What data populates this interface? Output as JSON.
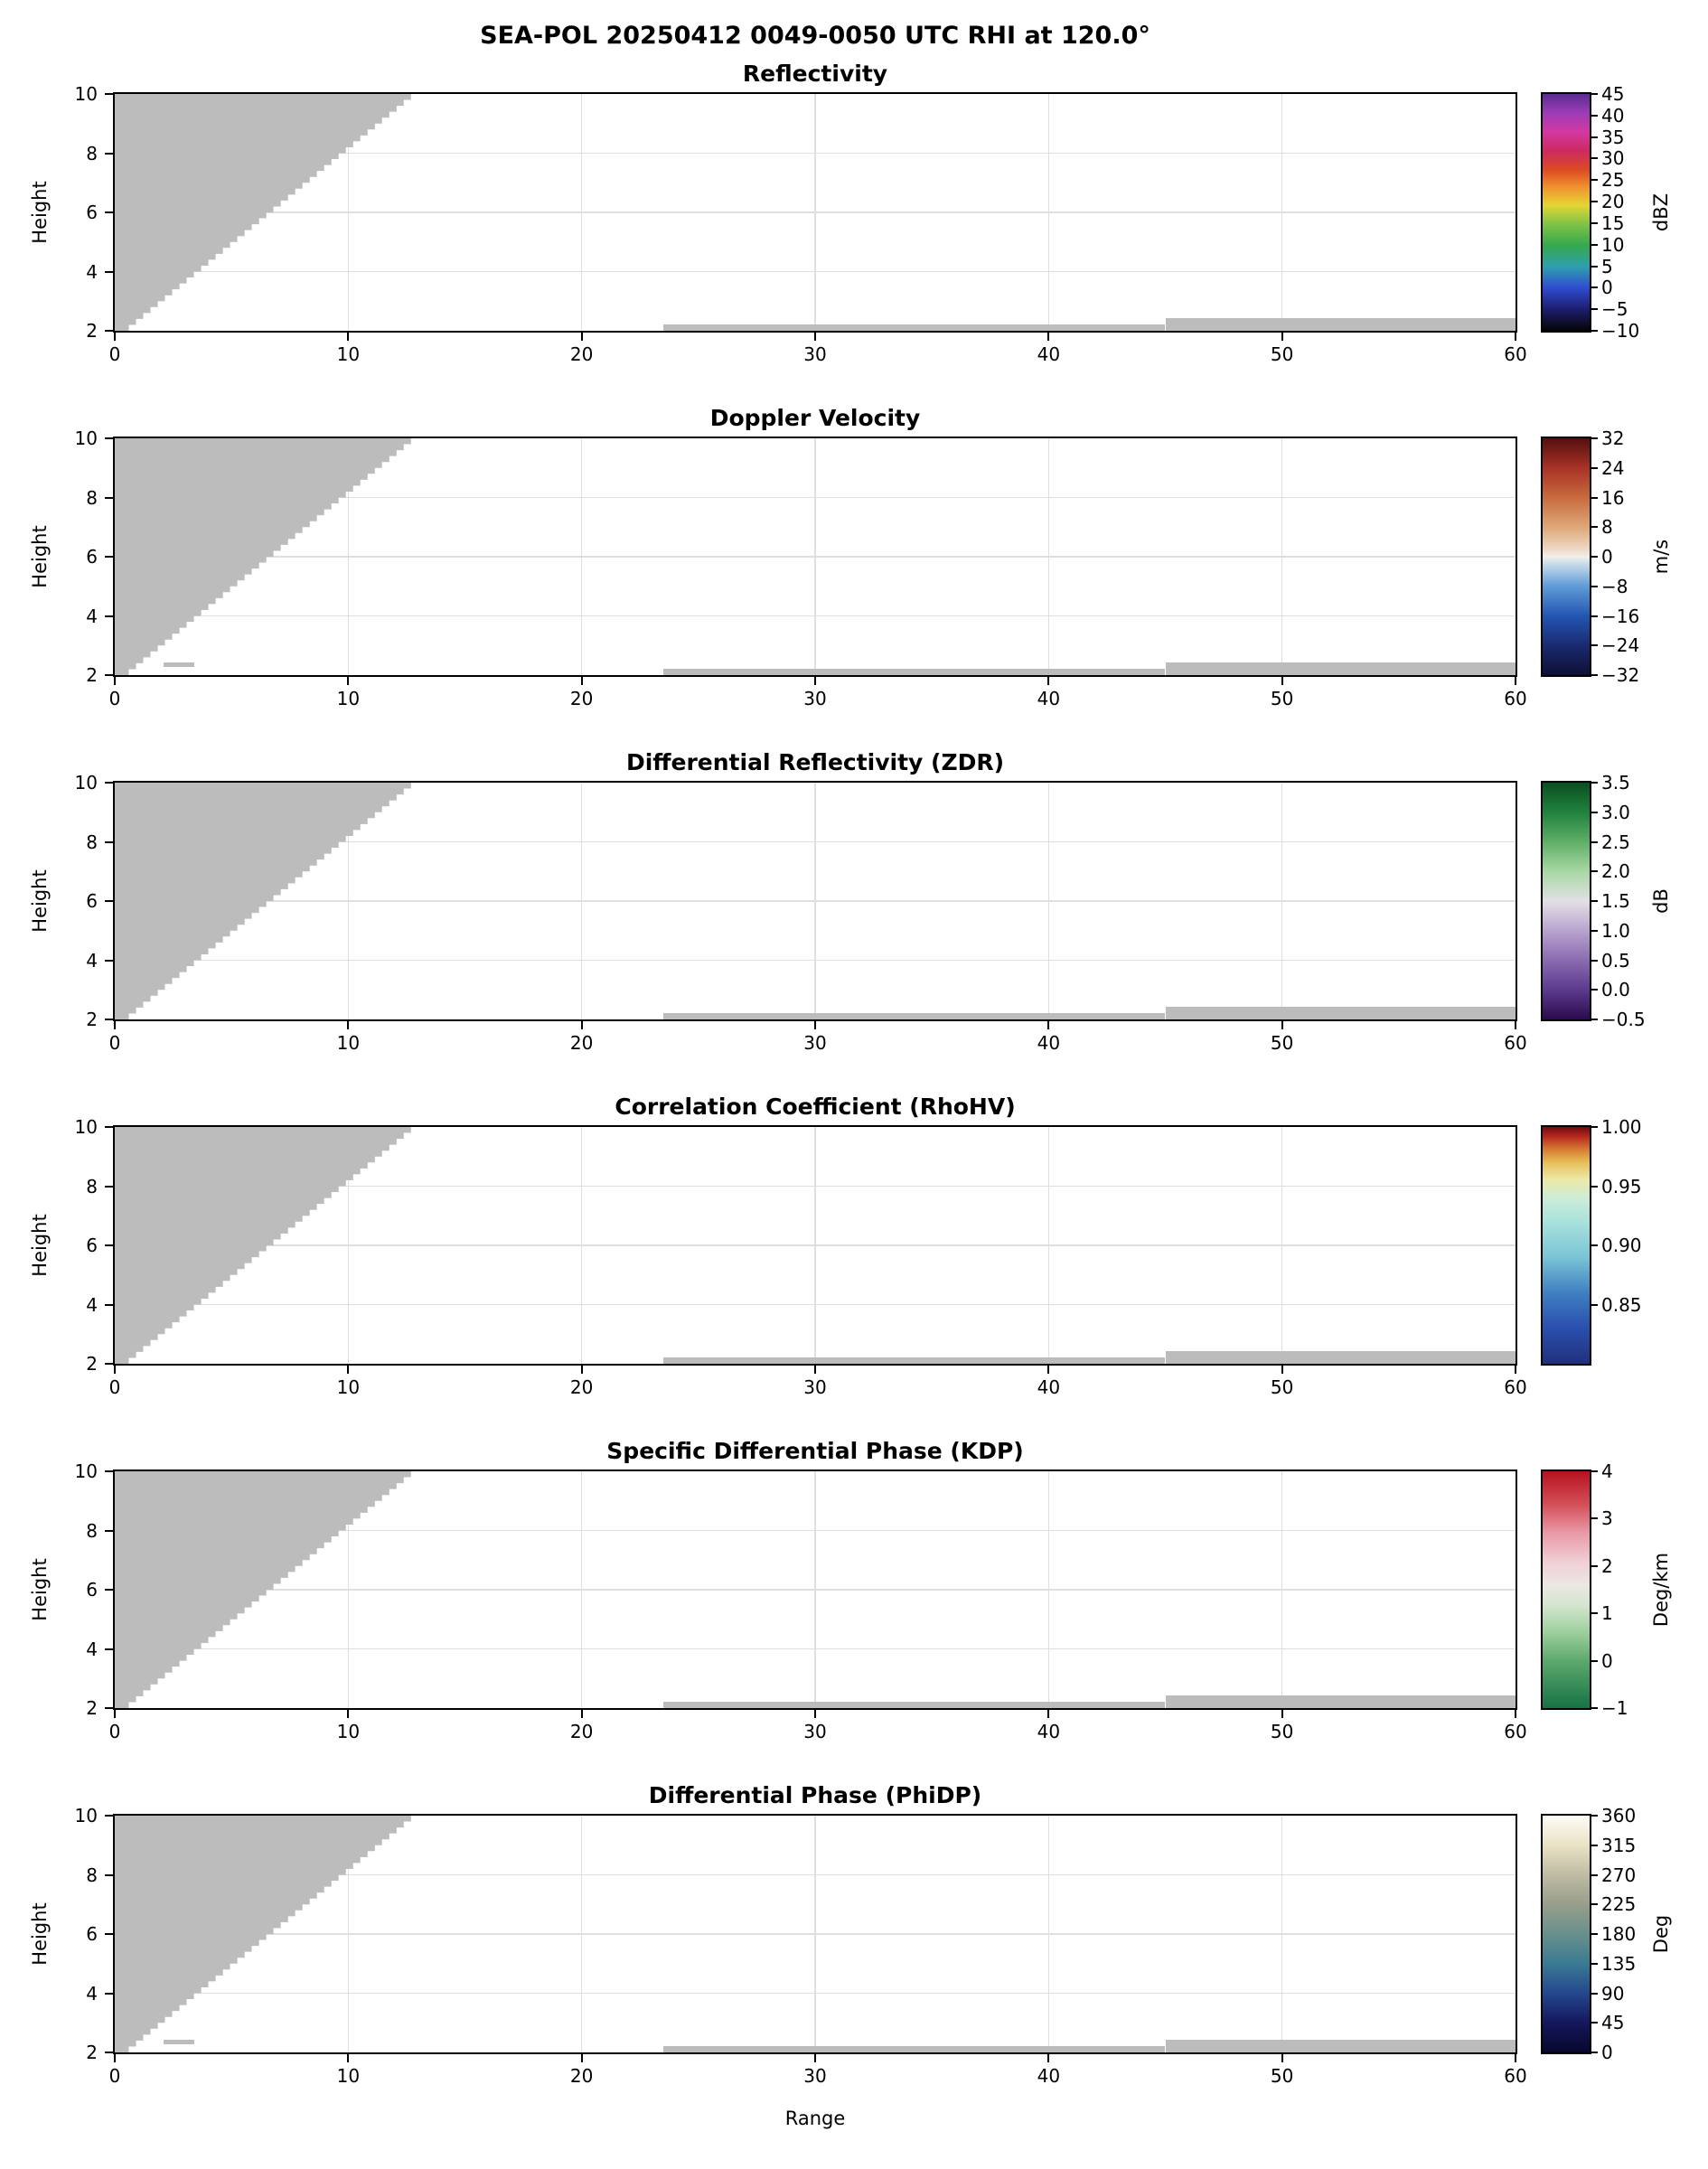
{
  "chart_data": {
    "type": "heatmap",
    "title": "SEA-POL 20250412 0049-0050 UTC RHI at 120.0°",
    "xlabel": "Range",
    "ylabel": "Height",
    "xlim": [
      0,
      60
    ],
    "ylim": [
      2,
      10
    ],
    "xticks": [
      0,
      10,
      20,
      30,
      40,
      50,
      60
    ],
    "xtick_labels": [
      "0",
      "10",
      "20",
      "30",
      "40",
      "50",
      "60"
    ],
    "yticks": [
      2,
      4,
      6,
      8,
      10
    ],
    "ytick_labels": [
      "2",
      "4",
      "6",
      "8",
      "10"
    ],
    "grid": true,
    "legend_position": "right-colorbar-per-panel",
    "visible_data_note": "No weather echoes are rendered; every panel shows only gray no-data mask regions: an upper-left wedge (range 0 to ~13, from height 2 up to 10, stepped diagonal edge) above the RHI scan's maximum elevation, plus thin near-surface gray strips at ranges 23.5-45 (height 2-2.22) and 45-60 (height 2-2.42).",
    "style": {
      "background": "#ffffff",
      "mask_color": "#bcbcbc",
      "grid_color": "#dfdfdf",
      "axis_color": "#000000"
    },
    "mask_regions": {
      "wedge": {
        "x_bottom": 0.6,
        "x_top": 13.0,
        "y_bottom": 2.0,
        "y_top": 10.0
      },
      "strips": [
        {
          "x0": 23.5,
          "x1": 45.0,
          "y0": 2.0,
          "y1": 2.22
        },
        {
          "x0": 45.0,
          "x1": 60.0,
          "y0": 2.0,
          "y1": 2.42
        }
      ],
      "speckles": [
        {
          "x0": 2.1,
          "x1": 3.4,
          "y0": 2.28,
          "y1": 2.42,
          "panels": [
            1,
            5
          ]
        }
      ]
    },
    "panels": [
      {
        "id": "reflectivity",
        "title": "Reflectivity",
        "unit": "dBZ",
        "vmin": -10,
        "vmax": 45,
        "ctick_values": [
          45,
          40,
          35,
          30,
          25,
          20,
          15,
          10,
          5,
          0,
          -5,
          -10
        ],
        "ctick_labels": [
          "45",
          "40",
          "35",
          "30",
          "25",
          "20",
          "15",
          "10",
          "5",
          "0",
          "−5",
          "−10"
        ],
        "gradient": [
          [
            0,
            "#050505"
          ],
          [
            0.09,
            "#1c1c6e"
          ],
          [
            0.18,
            "#2f4bd0"
          ],
          [
            0.27,
            "#2e9fae"
          ],
          [
            0.36,
            "#35a84e"
          ],
          [
            0.45,
            "#7fc346"
          ],
          [
            0.53,
            "#e4d534"
          ],
          [
            0.6,
            "#f19830"
          ],
          [
            0.68,
            "#dc4a22"
          ],
          [
            0.76,
            "#cc2a60"
          ],
          [
            0.84,
            "#d438a2"
          ],
          [
            0.92,
            "#9d3cb8"
          ],
          [
            1,
            "#5a2c90"
          ]
        ]
      },
      {
        "id": "velocity",
        "title": "Doppler Velocity",
        "unit": "m/s",
        "vmin": -32,
        "vmax": 32,
        "ctick_values": [
          32,
          24,
          16,
          8,
          0,
          -8,
          -16,
          -24,
          -32
        ],
        "ctick_labels": [
          "32",
          "24",
          "16",
          "8",
          "0",
          "−8",
          "−16",
          "−24",
          "−32"
        ],
        "gradient": [
          [
            0,
            "#0d1033"
          ],
          [
            0.125,
            "#1a2a72"
          ],
          [
            0.25,
            "#2356b2"
          ],
          [
            0.375,
            "#5f9bd8"
          ],
          [
            0.47,
            "#c8dce8"
          ],
          [
            0.5,
            "#f2efeb"
          ],
          [
            0.53,
            "#eed9c6"
          ],
          [
            0.625,
            "#dfa877"
          ],
          [
            0.75,
            "#c96a3e"
          ],
          [
            0.875,
            "#a83226"
          ],
          [
            1,
            "#54100f"
          ]
        ]
      },
      {
        "id": "zdr",
        "title": "Differential Reflectivity (ZDR)",
        "unit": "dB",
        "vmin": -0.5,
        "vmax": 3.5,
        "ctick_values": [
          3.5,
          3.0,
          2.5,
          2.0,
          1.5,
          1.0,
          0.5,
          0.0,
          -0.5
        ],
        "ctick_labels": [
          "3.5",
          "3.0",
          "2.5",
          "2.0",
          "1.5",
          "1.0",
          "0.5",
          "0.0",
          "−0.5"
        ],
        "gradient": [
          [
            0,
            "#2c0a4d"
          ],
          [
            0.125,
            "#5c3a8e"
          ],
          [
            0.25,
            "#8a6bb0"
          ],
          [
            0.375,
            "#b9a3cf"
          ],
          [
            0.5,
            "#e2e0e4"
          ],
          [
            0.625,
            "#a8d8a3"
          ],
          [
            0.75,
            "#5fae66"
          ],
          [
            0.875,
            "#20823d"
          ],
          [
            1,
            "#0b4f20"
          ]
        ]
      },
      {
        "id": "rhohv",
        "title": "Correlation Coefficient (RhoHV)",
        "unit": "",
        "vmin": 0.8,
        "vmax": 1.0,
        "ctick_values": [
          1.0,
          0.95,
          0.9,
          0.85
        ],
        "ctick_labels": [
          "1.00",
          "0.95",
          "0.90",
          "0.85"
        ],
        "gradient": [
          [
            0,
            "#20307c"
          ],
          [
            0.15,
            "#2a4fae"
          ],
          [
            0.3,
            "#3f80c1"
          ],
          [
            0.45,
            "#7ac4d5"
          ],
          [
            0.6,
            "#a9e2dd"
          ],
          [
            0.7,
            "#cdecd8"
          ],
          [
            0.78,
            "#ece9a6"
          ],
          [
            0.85,
            "#e7bf58"
          ],
          [
            0.91,
            "#d57430"
          ],
          [
            0.96,
            "#b5281e"
          ],
          [
            1,
            "#700b10"
          ]
        ]
      },
      {
        "id": "kdp",
        "title": "Specific Differential Phase (KDP)",
        "unit": "Deg/km",
        "vmin": -1,
        "vmax": 4,
        "ctick_values": [
          4,
          3,
          2,
          1,
          0,
          -1
        ],
        "ctick_labels": [
          "4",
          "3",
          "2",
          "1",
          "0",
          "−1"
        ],
        "gradient": [
          [
            0,
            "#177245"
          ],
          [
            0.2,
            "#5da96d"
          ],
          [
            0.32,
            "#9ecf9d"
          ],
          [
            0.44,
            "#d7e6d1"
          ],
          [
            0.52,
            "#ece7e3"
          ],
          [
            0.62,
            "#f0ced4"
          ],
          [
            0.74,
            "#e899a6"
          ],
          [
            0.86,
            "#d44f58"
          ],
          [
            1,
            "#b5121e"
          ]
        ]
      },
      {
        "id": "phidp",
        "title": "Differential Phase (PhiDP)",
        "unit": "Deg",
        "vmin": 0,
        "vmax": 360,
        "ctick_values": [
          360,
          315,
          270,
          225,
          180,
          135,
          90,
          45,
          0
        ],
        "ctick_labels": [
          "360",
          "315",
          "270",
          "225",
          "180",
          "135",
          "90",
          "45",
          "0"
        ],
        "gradient": [
          [
            0,
            "#07072d"
          ],
          [
            0.125,
            "#14175c"
          ],
          [
            0.25,
            "#24478e"
          ],
          [
            0.375,
            "#3a7a92"
          ],
          [
            0.5,
            "#68908c"
          ],
          [
            0.625,
            "#989e8b"
          ],
          [
            0.75,
            "#bfbca3"
          ],
          [
            0.875,
            "#e9e2c5"
          ],
          [
            1,
            "#fdfdf7"
          ]
        ]
      }
    ]
  }
}
